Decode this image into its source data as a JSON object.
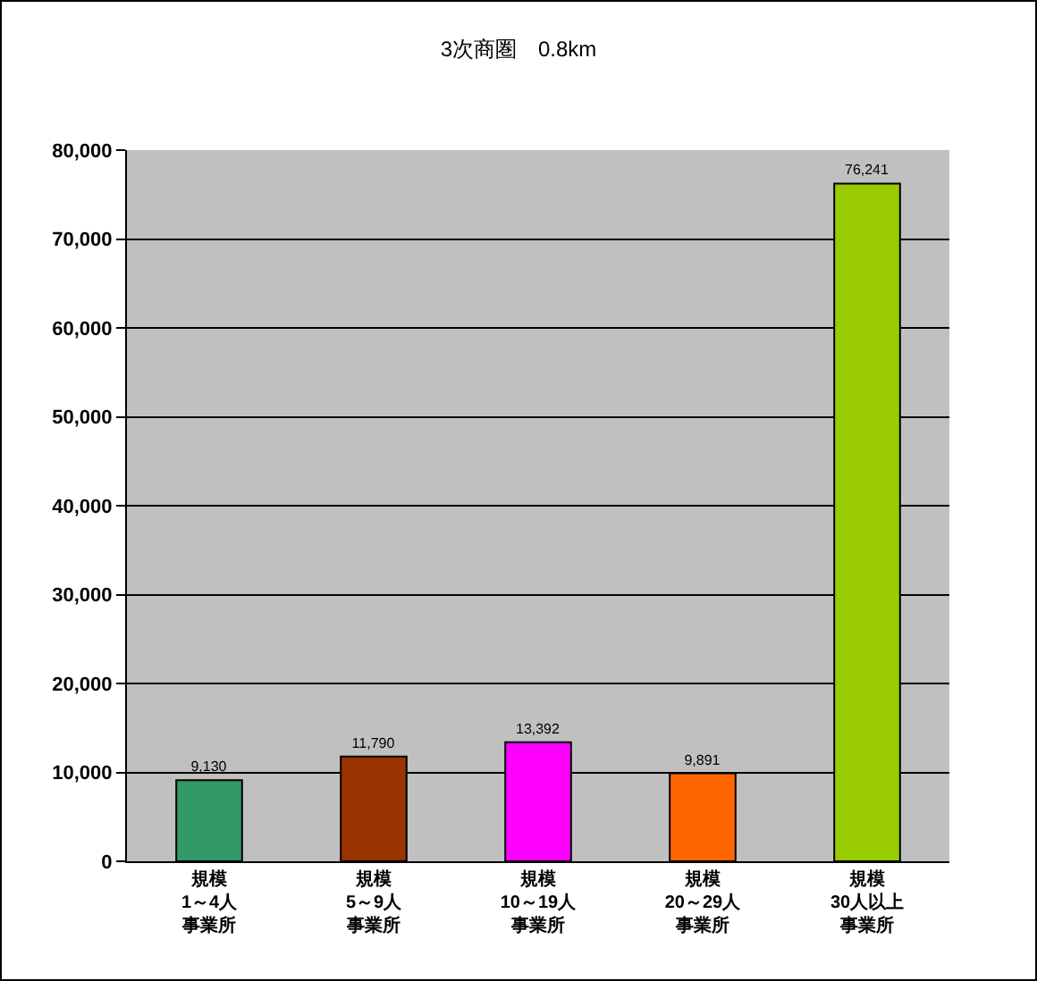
{
  "chart_data": {
    "type": "bar",
    "title": "3次商圏　0.8km",
    "categories": [
      "規模1～4人事業所",
      "規模5～9人事業所",
      "規模10～19人事業所",
      "規模20～29人事業所",
      "規模30人以上事業所"
    ],
    "values": [
      9130,
      11790,
      13392,
      9891,
      76241
    ],
    "value_labels": [
      "9,130",
      "11,790",
      "13,392",
      "9,891",
      "76,241"
    ],
    "colors": [
      "#339966",
      "#993300",
      "#ff00ff",
      "#ff6600",
      "#99cc00"
    ],
    "ylim": [
      0,
      80000
    ],
    "yticks": [
      {
        "value": 0,
        "label": "0"
      },
      {
        "value": 10000,
        "label": "10,000"
      },
      {
        "value": 20000,
        "label": "20,000"
      },
      {
        "value": 30000,
        "label": "30,000"
      },
      {
        "value": 40000,
        "label": "40,000"
      },
      {
        "value": 50000,
        "label": "50,000"
      },
      {
        "value": 60000,
        "label": "60,000"
      },
      {
        "value": 70000,
        "label": "70,000"
      },
      {
        "value": 80000,
        "label": "80,000"
      }
    ],
    "grid": "y",
    "legend": false
  }
}
